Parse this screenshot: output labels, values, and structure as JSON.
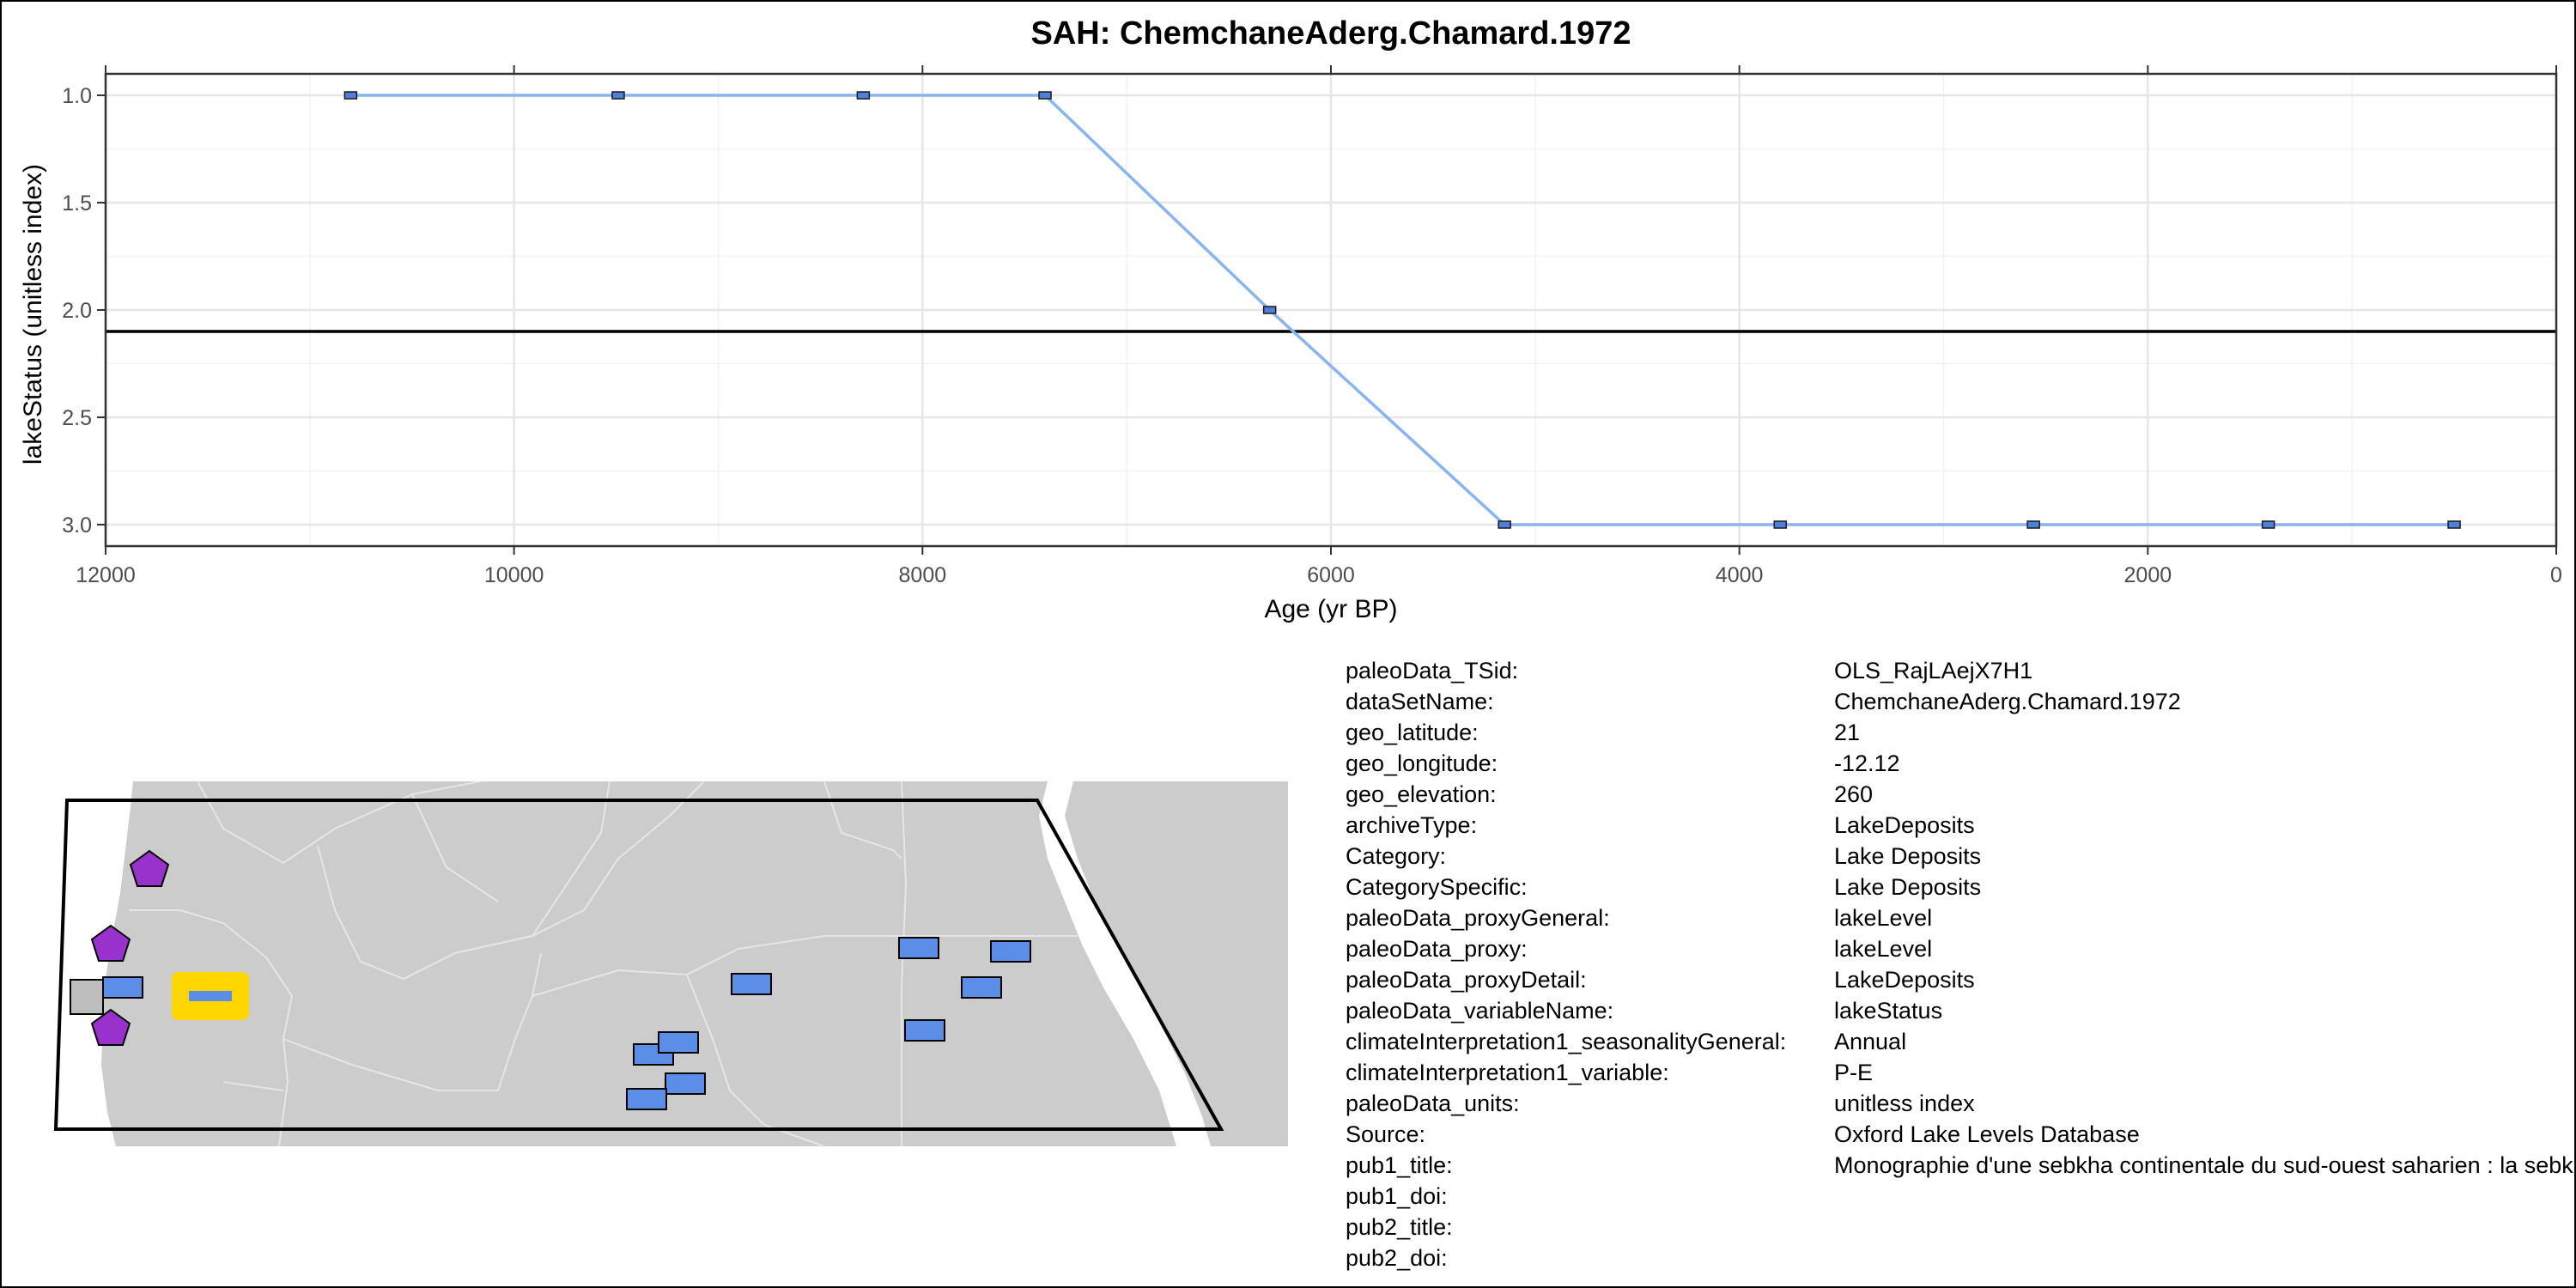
{
  "chart_data": {
    "type": "line",
    "title": "SAH: ChemchaneAderg.Chamard.1972",
    "xlabel": "Age (yr BP)",
    "ylabel": "lakeStatus (unitless index)",
    "x_reversed": true,
    "y_reversed": true,
    "xlim": [
      12000,
      0
    ],
    "ylim": [
      0.9,
      3.1
    ],
    "x_ticks": [
      12000,
      10000,
      8000,
      6000,
      4000,
      2000,
      0
    ],
    "x_tick_labels": [
      "12000",
      "10000",
      "8000",
      "6000",
      "4000",
      "2000",
      "0"
    ],
    "y_ticks": [
      1.0,
      1.5,
      2.0,
      2.5,
      3.0
    ],
    "y_tick_labels": [
      "1.0",
      "1.5",
      "2.0",
      "2.5",
      "3.0"
    ],
    "grid": true,
    "series": [
      {
        "name": "lakeStatus",
        "color": "#8ab4f0",
        "marker_color": "#4f7fd8",
        "x": [
          10800,
          9490,
          8290,
          7400,
          6300,
          5150,
          3800,
          2560,
          1410,
          500
        ],
        "y": [
          1,
          1,
          1,
          1,
          2,
          3,
          3,
          3,
          3,
          3
        ]
      }
    ],
    "reference_line": {
      "y": 2.1,
      "color": "#000000"
    }
  },
  "map": {
    "land_color": "#cccccc",
    "sea_color": "#ffffff",
    "border_color": "#e6e6e6",
    "region_outline_color": "#000000",
    "site_color": "#5b8ee6",
    "highlight_color": "#ffd700",
    "other_site_color": "#9932cc",
    "grey_site_color": "#bebebe"
  },
  "metadata": [
    {
      "key": "paleoData_TSid:",
      "value": "OLS_RajLAejX7H1"
    },
    {
      "key": "dataSetName:",
      "value": "ChemchaneAderg.Chamard.1972"
    },
    {
      "key": "geo_latitude:",
      "value": "21"
    },
    {
      "key": "geo_longitude:",
      "value": "-12.12"
    },
    {
      "key": "geo_elevation:",
      "value": "260"
    },
    {
      "key": "archiveType:",
      "value": "LakeDeposits"
    },
    {
      "key": "Category:",
      "value": "Lake Deposits"
    },
    {
      "key": "CategorySpecific:",
      "value": "Lake Deposits"
    },
    {
      "key": "paleoData_proxyGeneral:",
      "value": "lakeLevel"
    },
    {
      "key": "paleoData_proxy:",
      "value": "lakeLevel"
    },
    {
      "key": "paleoData_proxyDetail:",
      "value": "LakeDeposits"
    },
    {
      "key": "paleoData_variableName:",
      "value": "lakeStatus"
    },
    {
      "key": "climateInterpretation1_seasonalityGeneral:",
      "value": "Annual"
    },
    {
      "key": "climateInterpretation1_variable:",
      "value": "P-E"
    },
    {
      "key": "paleoData_units:",
      "value": "unitless index"
    },
    {
      "key": "Source:",
      "value": "Oxford Lake Levels Database"
    },
    {
      "key": "pub1_title:",
      "value": "Monographie d'une sebkha continentale du sud-ouest saharien : la sebkha de Chemchane (Mauritanie)"
    },
    {
      "key": "pub1_doi:",
      "value": ""
    },
    {
      "key": "pub2_title:",
      "value": ""
    },
    {
      "key": "pub2_doi:",
      "value": ""
    }
  ]
}
